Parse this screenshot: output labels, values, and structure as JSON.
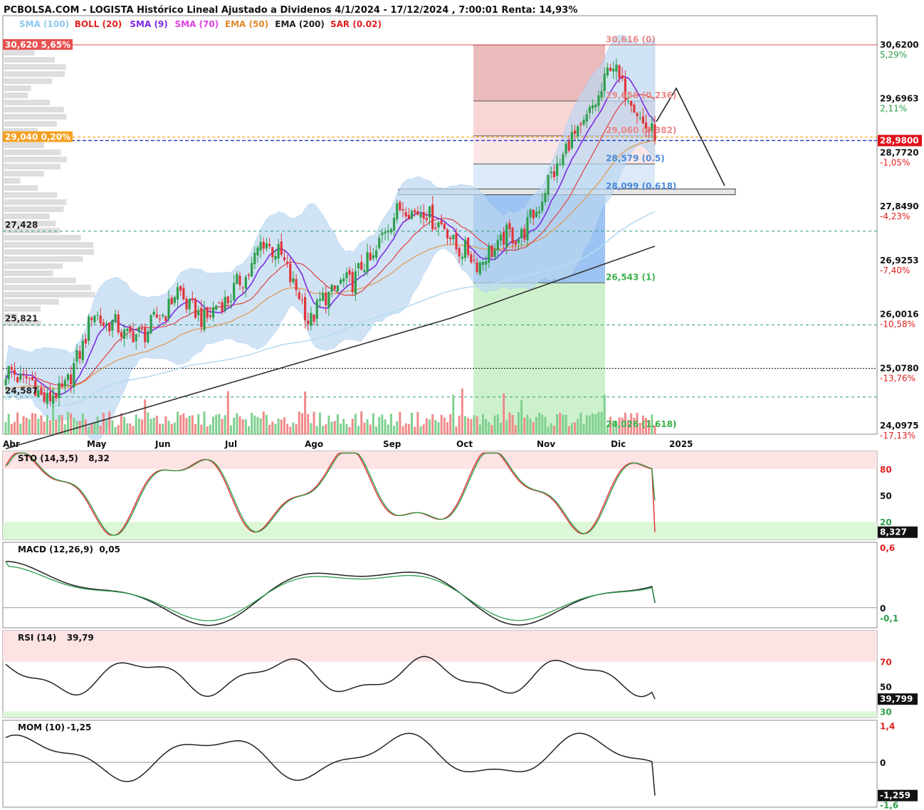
{
  "header": {
    "title": "PCBOLSA.COM - LOGISTA Histórico Lineal Ajustado a Dividenos 4/1/2024 - 17/12/2024 , 7:00:01 Renta: 14,93%",
    "legend": [
      {
        "text": "SMA (100)",
        "color": "#8ec9ef"
      },
      {
        "text": "BOLL (20)",
        "color": "#e02020"
      },
      {
        "text": "SMA (9)",
        "color": "#7d2be0"
      },
      {
        "text": "SMA (70)",
        "color": "#e040e0"
      },
      {
        "text": "EMA (50)",
        "color": "#e08a30"
      },
      {
        "text": "EMA (200)",
        "color": "#222222"
      },
      {
        "text": "SAR (0.02)",
        "color": "#e02020"
      }
    ]
  },
  "colors": {
    "up": "#2e9e4a",
    "down": "#e0363a",
    "sma100": "#b6dbf3",
    "ema50": "#e0a060",
    "boll_mid": "#e04040",
    "sma9": "#7d2be0",
    "ema200": "#333333",
    "boll_band": "#bcd8f2",
    "last_price_bg": "#e0101a",
    "orange_tag": "#f5a020"
  },
  "price_panel": {
    "left_labels": [
      {
        "text": "30,620  5,65%",
        "price": 30.62,
        "bg": "#e85050"
      },
      {
        "text": "29,040  0,20%",
        "price": 29.04,
        "bg": "#f5a020"
      },
      {
        "text": "27,428",
        "price": 27.428
      },
      {
        "text": "25,821",
        "price": 25.821
      },
      {
        "text": "24,587",
        "price": 24.587
      }
    ],
    "right_ticks": [
      {
        "price": 30.62,
        "label": "30,6200",
        "pct": "5,29%",
        "pct_color": "#2e9e4a"
      },
      {
        "price": 29.6963,
        "label": "29,6963",
        "pct": "2,11%",
        "pct_color": "#2e9e4a"
      },
      {
        "price": 28.772,
        "label": "28,7720",
        "pct": "-1,05%",
        "pct_color": "#e02020"
      },
      {
        "price": 27.849,
        "label": "27,8490",
        "pct": "-4,23%",
        "pct_color": "#e02020"
      },
      {
        "price": 26.9253,
        "label": "26,9253",
        "pct": "-7,40%",
        "pct_color": "#e02020"
      },
      {
        "price": 26.0016,
        "label": "26,0016",
        "pct": "-10,58%",
        "pct_color": "#e02020"
      },
      {
        "price": 25.078,
        "label": "25,0780",
        "pct": "-13,76%",
        "pct_color": "#e02020"
      },
      {
        "price": 24.0975,
        "label": "24,0975",
        "pct": "-17,13%",
        "pct_color": "#e02020"
      }
    ],
    "last_price": "28,9800",
    "fib_levels": [
      {
        "text": "30,616 (0)",
        "price": 30.616,
        "color": "#e88888"
      },
      {
        "text": "29,658 (0.236)",
        "price": 29.658,
        "color": "#e88888"
      },
      {
        "text": "29,060 (0.382)",
        "price": 29.06,
        "color": "#e88888"
      },
      {
        "text": "28,579 (0.5)",
        "price": 28.579,
        "color": "#4a8ad8"
      },
      {
        "text": "28,099 (0.618)",
        "price": 28.099,
        "color": "#4a8ad8"
      },
      {
        "text": "26,543 (1)",
        "price": 26.543,
        "color": "#3ab04a"
      },
      {
        "text": "24,026 (1.618)",
        "price": 24.026,
        "color": "#3ab04a"
      }
    ],
    "x_axis": [
      {
        "label": "Abr",
        "bold": false
      },
      {
        "label": "May",
        "bold": false
      },
      {
        "label": "Jun",
        "bold": false
      },
      {
        "label": "Jul",
        "bold": false
      },
      {
        "label": "Ago",
        "bold": false
      },
      {
        "label": "Sep",
        "bold": false
      },
      {
        "label": "Oct",
        "bold": false
      },
      {
        "label": "Nov",
        "bold": false
      },
      {
        "label": "Dic",
        "bold": false
      },
      {
        "label": "2025",
        "bold": true
      }
    ]
  },
  "sto": {
    "title": "STO (14,3,5)",
    "value": "8,32",
    "ticks": [
      "80",
      "50",
      "20"
    ],
    "last": "8,327"
  },
  "macd": {
    "title": "MACD (12,26,9)",
    "value": "0,05",
    "ticks": [
      "0,6",
      "0",
      "-0,1"
    ]
  },
  "rsi": {
    "title": "RSI (14)",
    "value": "39,79",
    "ticks": [
      "70",
      "50",
      "30"
    ],
    "last": "39,799"
  },
  "mom": {
    "title": "MOM (10)",
    "value": "-1,25",
    "ticks": [
      "1,4",
      "0",
      "-1,6"
    ],
    "last": "-1,259"
  },
  "chart_data": {
    "type": "candlestick",
    "title": "PCBOLSA.COM - LOGISTA Histórico Lineal Ajustado a Dividenos 4/1/2024 - 17/12/2024 , 7:00:01 Renta: 14,93%",
    "x_range": [
      "Abr",
      "Dic"
    ],
    "y_range": [
      23.95,
      30.9
    ],
    "close_anchors": [
      [
        "Abr",
        25.0
      ],
      [
        "Abr",
        24.9
      ],
      [
        "May",
        24.5
      ],
      [
        "May",
        24.9
      ],
      [
        "May",
        26.0
      ],
      [
        "May",
        25.8
      ],
      [
        "Jun",
        25.6
      ],
      [
        "Jun",
        25.9
      ],
      [
        "Jun",
        26.4
      ],
      [
        "Jun",
        25.9
      ],
      [
        "Jul",
        26.2
      ],
      [
        "Jul",
        26.6
      ],
      [
        "Jul",
        27.3
      ],
      [
        "Jul",
        26.8
      ],
      [
        "Ago",
        25.9
      ],
      [
        "Ago",
        26.4
      ],
      [
        "Ago",
        26.6
      ],
      [
        "Ago",
        27.0
      ],
      [
        "Sep",
        27.8
      ],
      [
        "Sep",
        27.8
      ],
      [
        "Sep",
        27.6
      ],
      [
        "Oct",
        27.1
      ],
      [
        "Oct",
        26.9
      ],
      [
        "Oct",
        27.3
      ],
      [
        "Oct",
        27.4
      ],
      [
        "Nov",
        28.2
      ],
      [
        "Nov",
        28.9
      ],
      [
        "Nov",
        29.4
      ],
      [
        "Nov",
        30.3
      ],
      [
        "Dic",
        29.6
      ],
      [
        "Dic",
        28.98
      ]
    ],
    "fibonacci": {
      "high": 30.616,
      "low": 26.543,
      "ext": 24.026
    },
    "indicators": {
      "STO": 8.327,
      "MACD": 0.05,
      "RSI": 39.799,
      "MOM": -1.259
    }
  }
}
